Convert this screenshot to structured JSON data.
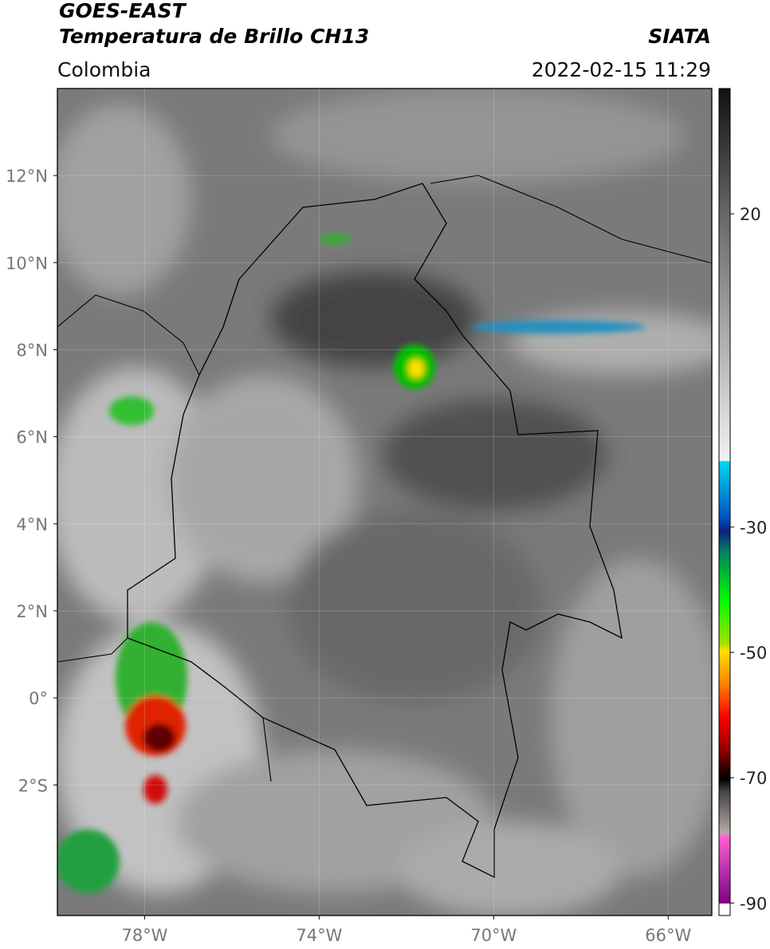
{
  "header": {
    "title": "GOES-EAST",
    "subtitle": "Temperatura de Brillo CH13",
    "source": "SIATA",
    "region": "Colombia",
    "timestamp": "2022-02-15 11:29"
  },
  "map": {
    "xlim": [
      -80,
      -65
    ],
    "ylim": [
      -5,
      14
    ],
    "xticks": [
      {
        "value": -78,
        "label": "78°W"
      },
      {
        "value": -74,
        "label": "74°W"
      },
      {
        "value": -70,
        "label": "70°W"
      },
      {
        "value": -66,
        "label": "66°W"
      }
    ],
    "yticks": [
      {
        "value": 12,
        "label": "12°N"
      },
      {
        "value": 10,
        "label": "10°N"
      },
      {
        "value": 8,
        "label": "8°N"
      },
      {
        "value": 6,
        "label": "6°N"
      },
      {
        "value": 4,
        "label": "4°N"
      },
      {
        "value": 2,
        "label": "2°N"
      },
      {
        "value": 0,
        "label": "0°"
      },
      {
        "value": -2,
        "label": "2°S"
      }
    ],
    "grid": true
  },
  "colorbar": {
    "clim": [
      -92,
      40
    ],
    "ticks": [
      20,
      -30,
      -50,
      -70,
      -90
    ]
  }
}
